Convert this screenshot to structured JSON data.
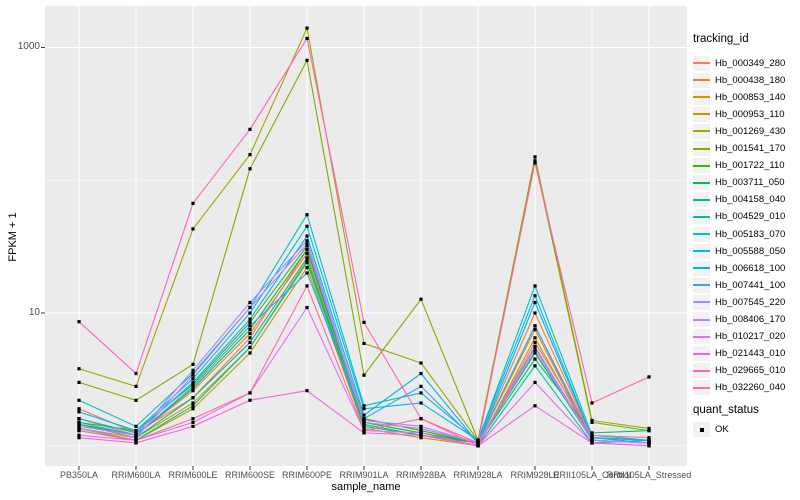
{
  "axes": {
    "y": {
      "title": "FPKM + 1",
      "scale": "log10",
      "ticks": [
        "1000",
        "10"
      ]
    },
    "x": {
      "title": "sample_name"
    }
  },
  "legend": {
    "tracking_title": "tracking_id",
    "quant_title": "quant_status",
    "quant_items": [
      {
        "label": "OK",
        "marker": "black-square"
      }
    ]
  },
  "colors": {
    "panel_bg": "#EBEBEB",
    "grid": "#FFFFFF",
    "point": "#000000",
    "axis_text": "#4D4D4D",
    "legend_key_bg": "#F2F2F2"
  },
  "chart_data": {
    "type": "line",
    "title": "",
    "xlabel": "sample_name",
    "ylabel": "FPKM + 1",
    "y_scale": "log10",
    "y_tick_values": [
      10,
      1000
    ],
    "y_minor_values": [
      1,
      100
    ],
    "ylim_log10": [
      -0.15,
      3.31
    ],
    "grid": true,
    "legend_position": "right",
    "point_marker": "small black square (quant_status = OK at every point)",
    "categories": [
      "PB350LA",
      "RRIM600LA",
      "RRIM600LE",
      "RRIM600SE",
      "RRIM600PE",
      "RRIM901LA",
      "RRIM928BA",
      "RRIM928LA",
      "RRIM928LE",
      "RRII105LA_Control",
      "RRII105LA_Stressed"
    ],
    "series": [
      {
        "name": "Hb_000349_280",
        "color": "#F8766D",
        "values": [
          1.9,
          1.25,
          2.3,
          6.5,
          30,
          1.6,
          1.3,
          1.05,
          8,
          1.15,
          1.1
        ]
      },
      {
        "name": "Hb_000438_180",
        "color": "#EA8331",
        "values": [
          1.6,
          1.2,
          2.6,
          7,
          28,
          1.5,
          1.25,
          1.05,
          10,
          1.15,
          1.1
        ]
      },
      {
        "name": "Hb_000853_140",
        "color": "#D89000",
        "values": [
          1.45,
          1.15,
          2.1,
          5.5,
          25,
          1.4,
          1.2,
          1.05,
          7.5,
          1.1,
          1.05
        ]
      },
      {
        "name": "Hb_000953_110",
        "color": "#C09B00",
        "values": [
          1.35,
          1.1,
          1.9,
          5,
          22,
          1.35,
          1.15,
          1.0,
          6.5,
          1.1,
          1.05
        ]
      },
      {
        "name": "Hb_001269_430",
        "color": "#A3A500",
        "values": [
          3.8,
          2.8,
          43,
          156,
          1400,
          5.9,
          4.2,
          1.1,
          150,
          1.55,
          1.35
        ]
      },
      {
        "name": "Hb_001541_170",
        "color": "#7CAE00",
        "values": [
          3.0,
          2.2,
          4.1,
          122,
          800,
          3.4,
          12.7,
          1.1,
          140,
          1.5,
          1.3
        ]
      },
      {
        "name": "Hb_001722_110",
        "color": "#39B600",
        "values": [
          1.5,
          1.3,
          2.9,
          8.5,
          32,
          1.6,
          1.3,
          1.05,
          5.5,
          1.1,
          1.05
        ]
      },
      {
        "name": "Hb_003711_050",
        "color": "#00BB4E",
        "values": [
          1.45,
          1.2,
          2.7,
          7.5,
          30,
          1.5,
          1.25,
          1.05,
          5.0,
          1.1,
          1.05
        ]
      },
      {
        "name": "Hb_004158_040",
        "color": "#00BF7D",
        "values": [
          1.35,
          1.15,
          2.3,
          6,
          26,
          1.45,
          1.2,
          1.05,
          4.5,
          1.25,
          1.3
        ]
      },
      {
        "name": "Hb_004529_010",
        "color": "#00C1A3",
        "values": [
          1.3,
          1.1,
          2.0,
          5.5,
          24,
          1.4,
          1.2,
          1.0,
          4.0,
          1.05,
          1.1
        ]
      },
      {
        "name": "Hb_005183_070",
        "color": "#00BFC4",
        "values": [
          2.2,
          1.4,
          3.5,
          11,
          55,
          2.0,
          2.5,
          1.1,
          16,
          1.2,
          1.1
        ]
      },
      {
        "name": "Hb_005588_050",
        "color": "#00BAE0",
        "values": [
          1.8,
          1.3,
          3.2,
          10,
          45,
          1.9,
          2.1,
          1.1,
          13.5,
          1.15,
          1.1
        ]
      },
      {
        "name": "Hb_006618_100",
        "color": "#00B0F6",
        "values": [
          1.6,
          1.25,
          3.0,
          9,
          38,
          1.7,
          3.5,
          1.05,
          12,
          1.15,
          1.05
        ]
      },
      {
        "name": "Hb_007441_100",
        "color": "#35A2FF",
        "values": [
          1.5,
          1.2,
          2.8,
          8,
          20,
          1.6,
          2.8,
          1.05,
          8,
          1.1,
          1.05
        ]
      },
      {
        "name": "Hb_007545_220",
        "color": "#9590FF",
        "values": [
          1.4,
          1.2,
          3.7,
          12,
          35,
          1.55,
          1.4,
          1.05,
          5.6,
          1.1,
          1.05
        ]
      },
      {
        "name": "Hb_008406_170",
        "color": "#C77CFF",
        "values": [
          1.35,
          1.15,
          3.4,
          11,
          33,
          1.5,
          1.35,
          1.05,
          5.2,
          1.1,
          1.05
        ]
      },
      {
        "name": "Hb_010217_020",
        "color": "#E76BF3",
        "values": [
          1.2,
          1.1,
          1.5,
          2.5,
          11,
          1.3,
          1.25,
          1.0,
          3.0,
          1.05,
          1.0
        ]
      },
      {
        "name": "Hb_021443_010",
        "color": "#FA62DB",
        "values": [
          1.15,
          1.05,
          1.4,
          2.2,
          2.6,
          1.25,
          1.2,
          1.0,
          2.0,
          1.05,
          1.0
        ]
      },
      {
        "name": "Hb_029665_010",
        "color": "#FF62BC",
        "values": [
          8.6,
          3.5,
          67,
          242,
          1170,
          8.5,
          1.6,
          1.05,
          135,
          2.1,
          3.3
        ]
      },
      {
        "name": "Hb_032260_040",
        "color": "#FF6A98",
        "values": [
          1.3,
          1.1,
          1.6,
          2.5,
          16,
          1.3,
          1.6,
          1.0,
          6.0,
          1.2,
          1.15
        ]
      }
    ]
  }
}
